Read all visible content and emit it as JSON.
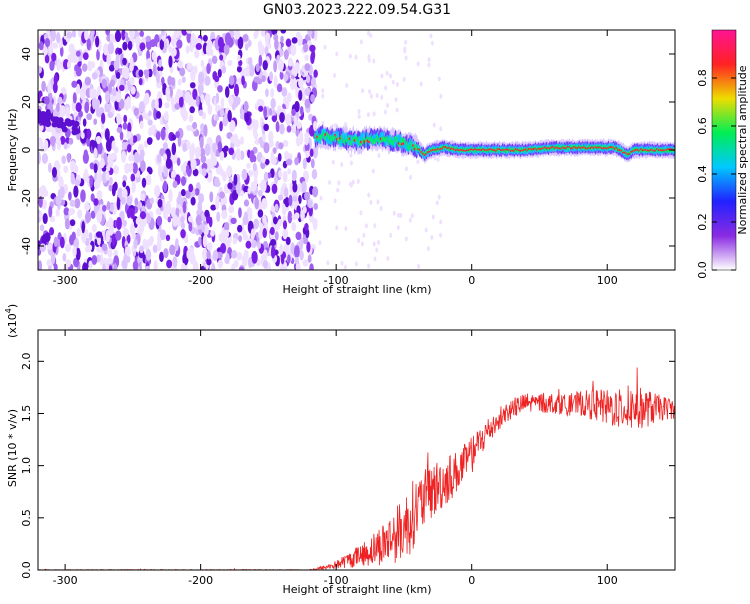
{
  "figure": {
    "title": "GN03.2023.222.09.54.G31"
  },
  "chart_data": [
    {
      "type": "heatmap",
      "xlabel": "Height of straight line (km)",
      "ylabel": "Frequency (Hz)",
      "xlim": [
        -320,
        150
      ],
      "ylim": [
        -50,
        50
      ],
      "x_ticks": [
        -300,
        -200,
        -100,
        0,
        100
      ],
      "x_tick_labels": [
        "-300",
        "-200",
        "-100",
        "0",
        "100"
      ],
      "y_ticks": [
        -40,
        -20,
        0,
        20,
        40
      ],
      "y_tick_labels": [
        "-40",
        "-20",
        "0",
        "20",
        "40"
      ],
      "noise_region_x": [
        -320,
        -115
      ],
      "ridge": {
        "x": [
          -115,
          -110,
          -100,
          -90,
          -80,
          -70,
          -60,
          -50,
          -40,
          -35,
          -30,
          -20,
          -10,
          0,
          10,
          20,
          40,
          60,
          80,
          90,
          100,
          105,
          110,
          115,
          120,
          130,
          150
        ],
        "y": [
          5,
          6,
          5,
          4,
          4,
          5,
          4,
          3,
          1,
          -2,
          0,
          1,
          0,
          0,
          0,
          0,
          0,
          1,
          1,
          1,
          1,
          1,
          0,
          -2,
          0,
          0,
          0
        ]
      },
      "colorbar": {
        "label": "Normalized spectral amplitude",
        "range": [
          0,
          1
        ],
        "ticks": [
          0.0,
          0.2,
          0.4,
          0.6,
          0.8
        ],
        "tick_labels": [
          "0.0",
          "0.2",
          "0.4",
          "0.6",
          "0.8"
        ],
        "colors": [
          "#ffffff",
          "#8a2be2",
          "#2222ff",
          "#00c8ff",
          "#00ee55",
          "#eedd00",
          "#ff2222",
          "#ff1493"
        ]
      }
    },
    {
      "type": "line",
      "xlabel": "Height of straight line (km)",
      "ylabel": "SNR (10 * v/v)",
      "exponent_label": "(x10",
      "exponent_sup": "4",
      "exponent_close": ")",
      "xlim": [
        -320,
        150
      ],
      "ylim": [
        0,
        2.3
      ],
      "x_ticks": [
        -300,
        -200,
        -100,
        0,
        100
      ],
      "x_tick_labels": [
        "-300",
        "-200",
        "-100",
        "0",
        "100"
      ],
      "y_ticks": [
        0.0,
        0.5,
        1.0,
        1.5,
        2.0
      ],
      "y_tick_labels": [
        "0.0",
        "0.5",
        "1.0",
        "1.5",
        "2.0"
      ],
      "color": "#ee2222",
      "series": [
        {
          "x": [
            -320,
            -200,
            -120,
            -110,
            -100,
            -90,
            -80,
            -70,
            -60,
            -50,
            -45,
            -40,
            -30,
            -20,
            -10,
            0,
            10,
            20,
            30,
            40,
            50,
            60,
            70,
            80,
            90,
            100,
            110,
            120,
            130,
            140,
            150
          ],
          "y": [
            0.0,
            0.0,
            0.0,
            0.02,
            0.05,
            0.1,
            0.15,
            0.22,
            0.3,
            0.4,
            0.5,
            0.6,
            0.75,
            0.85,
            0.95,
            1.1,
            1.3,
            1.45,
            1.55,
            1.6,
            1.6,
            1.6,
            1.58,
            1.6,
            1.58,
            1.55,
            1.55,
            1.55,
            1.55,
            1.55,
            1.55
          ],
          "noise": [
            0.005,
            0.005,
            0.005,
            0.02,
            0.04,
            0.08,
            0.12,
            0.18,
            0.25,
            0.3,
            0.35,
            0.3,
            0.28,
            0.25,
            0.2,
            0.18,
            0.15,
            0.12,
            0.1,
            0.1,
            0.1,
            0.1,
            0.1,
            0.12,
            0.15,
            0.18,
            0.2,
            0.22,
            0.18,
            0.12,
            0.1
          ]
        }
      ]
    }
  ]
}
